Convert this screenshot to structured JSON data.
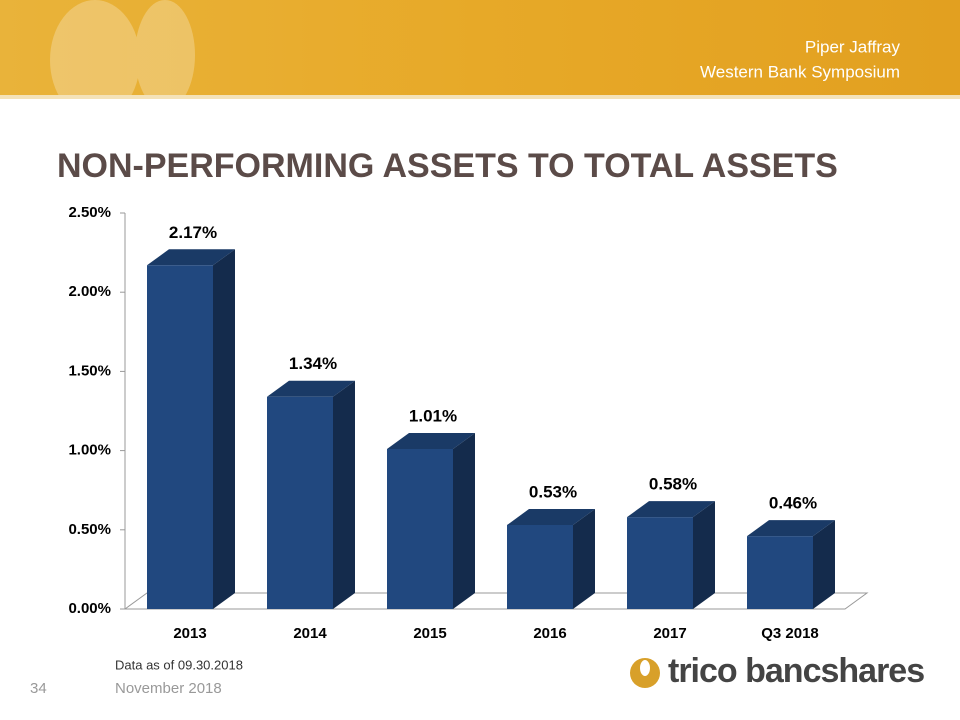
{
  "header": {
    "line1": "Piper Jaffray",
    "line2": "Western Bank Symposium"
  },
  "chart_data": {
    "type": "bar3d",
    "title": "NON-PERFORMING ASSETS TO TOTAL ASSETS",
    "categories": [
      "2013",
      "2014",
      "2015",
      "2016",
      "2017",
      "Q3 2018"
    ],
    "values": [
      2.17,
      1.34,
      1.01,
      0.53,
      0.58,
      0.46
    ],
    "value_labels": [
      "2.17%",
      "1.34%",
      "1.01%",
      "0.53%",
      "0.58%",
      "0.46%"
    ],
    "color": "#21487f",
    "ylim": [
      0,
      2.5
    ],
    "yticks": [
      {
        "value": 0,
        "label": "0.00%"
      },
      {
        "value": 0.5,
        "label": "0.50%"
      },
      {
        "value": 1,
        "label": "1.00%"
      },
      {
        "value": 1.5,
        "label": "1.50%"
      },
      {
        "value": 2,
        "label": "2.00%"
      },
      {
        "value": 2.5,
        "label": "2.50%"
      }
    ],
    "note": "Data as of 09.30.2018"
  },
  "footer": {
    "page": "34",
    "date": "November 2018",
    "logo": "trico bancshares"
  }
}
